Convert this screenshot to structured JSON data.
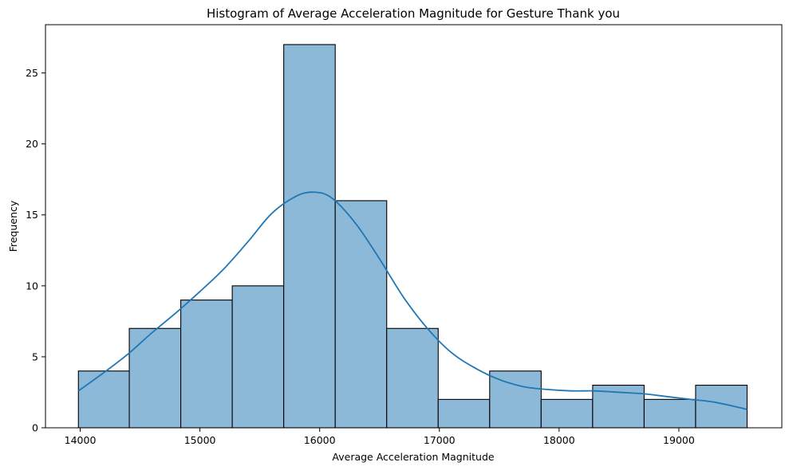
{
  "chart_data": {
    "type": "bar",
    "title": "Histogram of Average Acceleration Magnitude for Gesture Thank you",
    "xlabel": "Average Acceleration Magnitude",
    "ylabel": "Frequency",
    "xlim": [
      13710,
      19860
    ],
    "ylim": [
      0,
      28.4
    ],
    "grid": false,
    "bins": [
      {
        "x0": 13985,
        "x1": 14410,
        "count": 4
      },
      {
        "x0": 14410,
        "x1": 14840,
        "count": 7
      },
      {
        "x0": 14840,
        "x1": 15270,
        "count": 9
      },
      {
        "x0": 15270,
        "x1": 15700,
        "count": 10
      },
      {
        "x0": 15700,
        "x1": 16130,
        "count": 27
      },
      {
        "x0": 16130,
        "x1": 16560,
        "count": 16
      },
      {
        "x0": 16560,
        "x1": 16990,
        "count": 7
      },
      {
        "x0": 16990,
        "x1": 17420,
        "count": 2
      },
      {
        "x0": 17420,
        "x1": 17850,
        "count": 4
      },
      {
        "x0": 17850,
        "x1": 18280,
        "count": 2
      },
      {
        "x0": 18280,
        "x1": 18710,
        "count": 3
      },
      {
        "x0": 18710,
        "x1": 19140,
        "count": 2
      },
      {
        "x0": 19140,
        "x1": 19570,
        "count": 3
      }
    ],
    "x_ticks": [
      14000,
      15000,
      16000,
      17000,
      18000,
      19000
    ],
    "y_ticks": [
      0,
      5,
      10,
      15,
      20,
      25
    ],
    "kde": {
      "x": [
        13985,
        14200,
        14400,
        14600,
        14800,
        15000,
        15200,
        15400,
        15600,
        15800,
        15950,
        16100,
        16300,
        16500,
        16700,
        16900,
        17100,
        17300,
        17500,
        17700,
        17900,
        18100,
        18300,
        18500,
        18700,
        18900,
        19100,
        19300,
        19570
      ],
      "y": [
        2.6,
        3.9,
        5.2,
        6.7,
        8.1,
        9.6,
        11.2,
        13.1,
        15.1,
        16.3,
        16.6,
        16.2,
        14.4,
        11.9,
        9.2,
        7.0,
        5.3,
        4.2,
        3.4,
        2.9,
        2.7,
        2.6,
        2.6,
        2.5,
        2.4,
        2.2,
        2.0,
        1.8,
        1.3
      ],
      "color": "#1f77b4"
    },
    "bar_color": "#8db9d9"
  }
}
